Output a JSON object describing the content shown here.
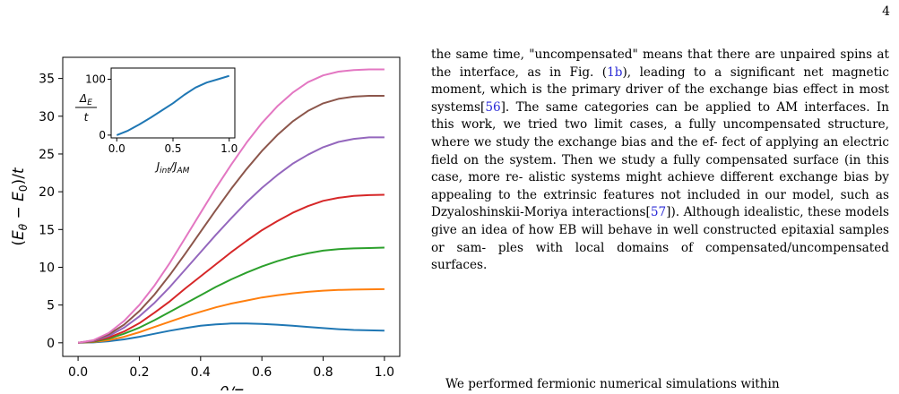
{
  "page": {
    "number": "4"
  },
  "figure": {
    "chart_data": [
      {
        "type": "line",
        "title": "",
        "xlabel": "θ/π",
        "ylabel": "(E_θ − E_0)/t",
        "xlim": [
          -0.05,
          1.05
        ],
        "ylim": [
          -1.8,
          37.8
        ],
        "xticks": [
          "0.0",
          "0.2",
          "0.4",
          "0.6",
          "0.8",
          "1.0"
        ],
        "yticks": [
          "0",
          "5",
          "10",
          "15",
          "20",
          "25",
          "30",
          "35"
        ],
        "grid": false,
        "x": [
          0,
          0.05,
          0.1,
          0.15,
          0.2,
          0.25,
          0.3,
          0.35,
          0.4,
          0.45,
          0.5,
          0.55,
          0.6,
          0.65,
          0.7,
          0.75,
          0.8,
          0.85,
          0.9,
          0.95,
          1.0
        ],
        "series": [
          {
            "color": "#1f77b4",
            "values": [
              0,
              0.05,
              0.2,
              0.45,
              0.8,
              1.2,
              1.6,
              1.95,
              2.25,
              2.45,
              2.55,
              2.55,
              2.5,
              2.4,
              2.25,
              2.1,
              1.95,
              1.8,
              1.7,
              1.65,
              1.6
            ]
          },
          {
            "color": "#ff7f0e",
            "values": [
              0,
              0.1,
              0.35,
              0.8,
              1.4,
              2.1,
              2.8,
              3.5,
              4.1,
              4.7,
              5.2,
              5.6,
              6.0,
              6.3,
              6.55,
              6.75,
              6.9,
              7.0,
              7.05,
              7.08,
              7.1
            ]
          },
          {
            "color": "#2ca02c",
            "values": [
              0,
              0.15,
              0.55,
              1.2,
              2.0,
              3.0,
              4.1,
              5.2,
              6.3,
              7.4,
              8.4,
              9.3,
              10.1,
              10.8,
              11.4,
              11.85,
              12.2,
              12.4,
              12.5,
              12.55,
              12.6
            ]
          },
          {
            "color": "#d62728",
            "values": [
              0,
              0.2,
              0.7,
              1.5,
              2.6,
              4.0,
              5.5,
              7.2,
              8.8,
              10.4,
              12.0,
              13.5,
              14.9,
              16.1,
              17.2,
              18.1,
              18.8,
              19.2,
              19.45,
              19.55,
              19.6
            ]
          },
          {
            "color": "#9467bd",
            "values": [
              0,
              0.25,
              0.9,
              2.0,
              3.5,
              5.3,
              7.4,
              9.7,
              12.0,
              14.3,
              16.5,
              18.6,
              20.5,
              22.2,
              23.7,
              24.9,
              25.9,
              26.6,
              27.0,
              27.2,
              27.2
            ]
          },
          {
            "color": "#8c564b",
            "values": [
              0,
              0.3,
              1.1,
              2.4,
              4.2,
              6.4,
              9.0,
              11.8,
              14.7,
              17.6,
              20.4,
              23.0,
              25.4,
              27.5,
              29.3,
              30.7,
              31.7,
              32.3,
              32.6,
              32.7,
              32.7
            ]
          },
          {
            "color": "#e377c2",
            "values": [
              0,
              0.35,
              1.3,
              2.9,
              5.0,
              7.6,
              10.6,
              13.9,
              17.2,
              20.5,
              23.6,
              26.5,
              29.1,
              31.3,
              33.1,
              34.5,
              35.4,
              35.9,
              36.1,
              36.2,
              36.2
            ]
          }
        ]
      },
      {
        "type": "line",
        "title": "",
        "xlabel": "J_int/J_AM",
        "ylabel": "Δ_E / t",
        "xlim": [
          -0.05,
          1.05
        ],
        "ylim": [
          -5,
          120
        ],
        "xticks": [
          "0.0",
          "0.5",
          "1.0"
        ],
        "yticks": [
          "0",
          "100"
        ],
        "grid": false,
        "x": [
          0,
          0.1,
          0.2,
          0.3,
          0.4,
          0.5,
          0.6,
          0.7,
          0.8,
          0.9,
          1.0
        ],
        "series": [
          {
            "color": "#1f77b4",
            "values": [
              0,
              8,
              19,
              31,
              44,
              57,
              72,
              85,
              94,
              100,
              106
            ]
          }
        ]
      }
    ]
  },
  "body": {
    "line01": "the same time, \"uncompensated\" means that there are",
    "line02": "unpaired spins at the interface, as in Fig. (",
    "fig_ref": "1b",
    "line02b": "), leading to",
    "line03": "a significant net magnetic moment, which is the primary",
    "line04": "driver of the exchange bias effect in most systems[",
    "cite56": "56",
    "line04b": "].",
    "line05": "The same categories can be applied to AM interfaces. In",
    "line06": "this work, we tried two limit cases, a fully uncompensated",
    "line07": "structure, where we study the exchange bias and the ef-",
    "line08": "fect of applying an electric field on the system. Then we",
    "line09": "study a fully compensated surface (in this case, more re-",
    "line10": "alistic systems might achieve different exchange bias by",
    "line11": "appealing to the extrinsic features not included in our",
    "line12": "model, such as Dzyaloshinskii-Moriya interactions[",
    "cite57": "57",
    "line12b": "]).",
    "line13": "Although idealistic, these models give an idea of how EB",
    "line14": "will behave in well constructed epitaxial samples or sam-",
    "line15": "ples with local domains of compensated/uncompensated",
    "line16": "surfaces.",
    "next": "We performed fermionic numerical simulations within"
  }
}
